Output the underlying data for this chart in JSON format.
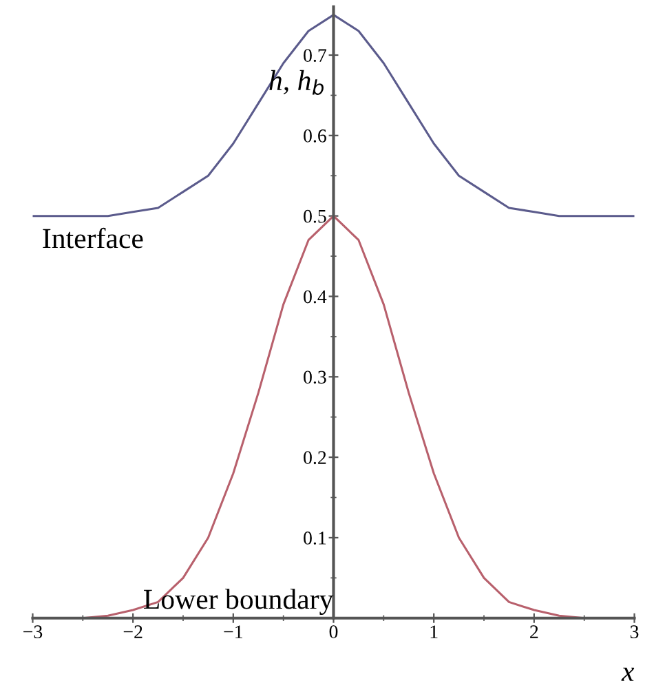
{
  "chart_data": {
    "type": "line",
    "xlabel": "x",
    "ylabel": "h, h$_{b}$",
    "x": [
      -3,
      -2.75,
      -2.5,
      -2.25,
      -2,
      -1.75,
      -1.5,
      -1.25,
      -1,
      -0.75,
      -0.5,
      -0.25,
      0,
      0.25,
      0.5,
      0.75,
      1,
      1.25,
      1.5,
      1.75,
      2,
      2.25,
      2.5,
      2.75,
      3
    ],
    "series": [
      {
        "color": "#5b5b8c",
        "values": [
          0.5,
          0.5,
          0.5,
          0.5,
          0.505,
          0.51,
          0.53,
          0.55,
          0.59,
          0.64,
          0.69,
          0.73,
          0.75,
          0.73,
          0.69,
          0.64,
          0.59,
          0.55,
          0.53,
          0.51,
          0.505,
          0.5,
          0.5,
          0.5,
          0.5
        ]
      },
      {
        "color": "#b8606c",
        "values": [
          0,
          0,
          0,
          0.003,
          0.01,
          0.02,
          0.05,
          0.1,
          0.18,
          0.28,
          0.39,
          0.47,
          0.5,
          0.47,
          0.39,
          0.28,
          0.18,
          0.1,
          0.05,
          0.02,
          0.01,
          0.003,
          0,
          0,
          0
        ]
      }
    ],
    "annotations": [
      {
        "text": "Interface",
        "x": -2.4,
        "y": 0.5
      },
      "Lower boundary"
    ],
    "xlim": [
      -3,
      3
    ],
    "ylim": [
      0,
      0.76
    ],
    "xticks": [
      -3,
      -2,
      -1,
      0,
      1,
      2,
      3
    ],
    "yticks": [
      0.1,
      0.2,
      0.3,
      0.4,
      0.5,
      0.6,
      0.7
    ],
    "grid": false,
    "legend": false,
    "marker": "none",
    "line_style": "solid"
  }
}
